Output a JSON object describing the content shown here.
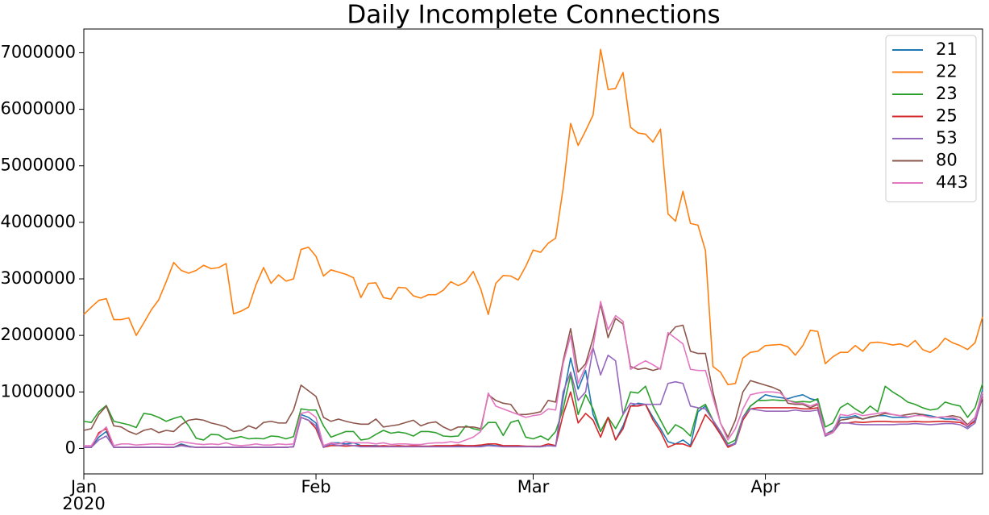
{
  "chart_data": {
    "type": "line",
    "title": "Daily Incomplete Connections",
    "categories": [
      "Jan",
      null,
      null,
      null,
      null,
      null,
      null,
      null,
      null,
      null,
      null,
      null,
      null,
      null,
      null,
      null,
      null,
      null,
      null,
      null,
      null,
      null,
      null,
      null,
      null,
      null,
      null,
      null,
      null,
      null,
      null,
      "Feb",
      null,
      null,
      null,
      null,
      null,
      null,
      null,
      null,
      null,
      null,
      null,
      null,
      null,
      null,
      null,
      null,
      null,
      null,
      null,
      null,
      null,
      null,
      null,
      null,
      null,
      null,
      null,
      null,
      "Mar",
      null,
      null,
      null,
      null,
      null,
      null,
      null,
      null,
      null,
      null,
      null,
      null,
      null,
      null,
      null,
      null,
      null,
      null,
      null,
      null,
      null,
      null,
      null,
      null,
      null,
      null,
      null,
      null,
      null,
      null,
      "Apr",
      null,
      null,
      null,
      null,
      null,
      null,
      null,
      null,
      null,
      null,
      null,
      null,
      null,
      null,
      null,
      null,
      null,
      null,
      null,
      null,
      null,
      null,
      null,
      null,
      null,
      null,
      null,
      null,
      null
    ],
    "x_year": "2020",
    "ylim": [
      -450000,
      7420000
    ],
    "yticks": [
      0,
      1000000,
      2000000,
      3000000,
      4000000,
      5000000,
      6000000,
      7000000
    ],
    "grid": false,
    "legend": "upper right",
    "series": [
      {
        "name": "21",
        "color": "#1f77b4",
        "values": [
          20000,
          20000,
          200000,
          300000,
          20000,
          20000,
          20000,
          20000,
          20000,
          20000,
          20000,
          20000,
          20000,
          80000,
          40000,
          20000,
          20000,
          20000,
          20000,
          20000,
          20000,
          20000,
          20000,
          20000,
          20000,
          20000,
          20000,
          20000,
          30000,
          600000,
          550000,
          450000,
          20000,
          100000,
          100000,
          80000,
          100000,
          50000,
          50000,
          50000,
          40000,
          40000,
          40000,
          40000,
          40000,
          40000,
          40000,
          40000,
          40000,
          40000,
          40000,
          40000,
          40000,
          40000,
          60000,
          50000,
          40000,
          40000,
          40000,
          40000,
          30000,
          30000,
          50000,
          40000,
          900000,
          1600000,
          1050000,
          1380000,
          600000,
          300000,
          550000,
          150000,
          400000,
          750000,
          800000,
          780000,
          550000,
          350000,
          120000,
          80000,
          150000,
          50000,
          650000,
          750000,
          500000,
          250000,
          30000,
          100000,
          550000,
          750000,
          850000,
          950000,
          920000,
          900000,
          880000,
          920000,
          950000,
          880000,
          850000,
          250000,
          320000,
          550000,
          550000,
          580000,
          520000,
          550000,
          580000,
          580000,
          550000,
          550000,
          550000,
          580000,
          600000,
          580000,
          550000,
          520000,
          520000,
          500000,
          380000,
          500000,
          1050000
        ]
      },
      {
        "name": "22",
        "color": "#ff7f0e",
        "values": [
          2370000,
          2500000,
          2620000,
          2650000,
          2280000,
          2280000,
          2310000,
          2000000,
          2220000,
          2450000,
          2630000,
          2950000,
          3290000,
          3150000,
          3100000,
          3150000,
          3240000,
          3180000,
          3200000,
          3270000,
          2380000,
          2430000,
          2500000,
          2900000,
          3200000,
          2920000,
          3070000,
          2960000,
          3000000,
          3520000,
          3560000,
          3400000,
          3050000,
          3160000,
          3120000,
          3080000,
          3020000,
          2670000,
          2920000,
          2930000,
          2670000,
          2640000,
          2850000,
          2840000,
          2700000,
          2660000,
          2720000,
          2720000,
          2800000,
          2950000,
          2880000,
          2950000,
          3130000,
          2820000,
          2370000,
          2920000,
          3060000,
          3050000,
          2980000,
          3220000,
          3510000,
          3470000,
          3630000,
          3720000,
          4600000,
          5750000,
          5360000,
          5620000,
          5900000,
          7060000,
          6350000,
          6370000,
          6650000,
          5680000,
          5580000,
          5560000,
          5420000,
          5650000,
          4150000,
          4020000,
          4550000,
          3980000,
          3950000,
          3500000,
          1450000,
          1350000,
          1130000,
          1150000,
          1600000,
          1700000,
          1720000,
          1820000,
          1830000,
          1840000,
          1800000,
          1650000,
          1820000,
          2090000,
          2070000,
          1500000,
          1620000,
          1700000,
          1700000,
          1820000,
          1720000,
          1870000,
          1880000,
          1860000,
          1830000,
          1850000,
          1800000,
          1910000,
          1750000,
          1700000,
          1790000,
          1950000,
          1870000,
          1820000,
          1750000,
          1870000,
          2330000
        ]
      },
      {
        "name": "23",
        "color": "#2ca02c",
        "values": [
          480000,
          460000,
          650000,
          760000,
          480000,
          450000,
          420000,
          370000,
          620000,
          600000,
          550000,
          480000,
          530000,
          570000,
          400000,
          180000,
          150000,
          250000,
          240000,
          160000,
          180000,
          210000,
          170000,
          180000,
          170000,
          220000,
          210000,
          170000,
          210000,
          700000,
          680000,
          680000,
          400000,
          200000,
          250000,
          300000,
          300000,
          150000,
          170000,
          250000,
          320000,
          270000,
          290000,
          270000,
          220000,
          300000,
          300000,
          280000,
          220000,
          210000,
          220000,
          400000,
          350000,
          320000,
          460000,
          460000,
          230000,
          460000,
          500000,
          200000,
          170000,
          220000,
          150000,
          300000,
          700000,
          1300000,
          600000,
          950000,
          700000,
          300000,
          550000,
          350000,
          600000,
          1000000,
          980000,
          1100000,
          750000,
          500000,
          250000,
          420000,
          350000,
          220000,
          700000,
          780000,
          500000,
          300000,
          80000,
          150000,
          550000,
          750000,
          850000,
          850000,
          860000,
          850000,
          850000,
          820000,
          830000,
          820000,
          880000,
          380000,
          450000,
          720000,
          800000,
          700000,
          620000,
          750000,
          650000,
          1100000,
          1000000,
          920000,
          820000,
          780000,
          720000,
          680000,
          700000,
          820000,
          780000,
          750000,
          550000,
          720000,
          1150000
        ]
      },
      {
        "name": "25",
        "color": "#d62728",
        "values": [
          20000,
          20000,
          280000,
          350000,
          20000,
          20000,
          20000,
          20000,
          20000,
          20000,
          20000,
          20000,
          20000,
          60000,
          30000,
          20000,
          20000,
          20000,
          20000,
          20000,
          20000,
          20000,
          20000,
          20000,
          20000,
          20000,
          20000,
          20000,
          30000,
          550000,
          500000,
          350000,
          20000,
          50000,
          50000,
          40000,
          50000,
          50000,
          50000,
          40000,
          50000,
          40000,
          50000,
          40000,
          50000,
          40000,
          40000,
          50000,
          50000,
          50000,
          60000,
          50000,
          50000,
          60000,
          80000,
          80000,
          50000,
          50000,
          50000,
          40000,
          40000,
          40000,
          80000,
          50000,
          600000,
          1000000,
          450000,
          620000,
          500000,
          200000,
          550000,
          150000,
          350000,
          750000,
          750000,
          780000,
          500000,
          300000,
          20000,
          80000,
          80000,
          30000,
          300000,
          600000,
          450000,
          250000,
          20000,
          80000,
          500000,
          700000,
          720000,
          720000,
          720000,
          720000,
          720000,
          720000,
          700000,
          700000,
          720000,
          220000,
          280000,
          450000,
          450000,
          470000,
          460000,
          470000,
          480000,
          480000,
          470000,
          470000,
          470000,
          480000,
          470000,
          470000,
          480000,
          480000,
          470000,
          460000,
          400000,
          480000,
          900000
        ]
      },
      {
        "name": "53",
        "color": "#9467bd",
        "values": [
          20000,
          20000,
          150000,
          220000,
          20000,
          20000,
          20000,
          20000,
          20000,
          20000,
          20000,
          20000,
          20000,
          50000,
          30000,
          20000,
          20000,
          20000,
          20000,
          20000,
          20000,
          20000,
          20000,
          20000,
          20000,
          20000,
          20000,
          20000,
          30000,
          550000,
          500000,
          400000,
          20000,
          80000,
          50000,
          70000,
          50000,
          30000,
          30000,
          30000,
          30000,
          30000,
          30000,
          30000,
          30000,
          30000,
          30000,
          30000,
          30000,
          30000,
          30000,
          30000,
          30000,
          30000,
          50000,
          40000,
          30000,
          30000,
          30000,
          30000,
          30000,
          30000,
          50000,
          40000,
          1000000,
          1350000,
          850000,
          1000000,
          1780000,
          1300000,
          1650000,
          1550000,
          600000,
          800000,
          780000,
          780000,
          780000,
          780000,
          1150000,
          1180000,
          1150000,
          750000,
          720000,
          700000,
          500000,
          300000,
          50000,
          80000,
          550000,
          700000,
          680000,
          660000,
          660000,
          660000,
          660000,
          680000,
          660000,
          660000,
          680000,
          220000,
          280000,
          450000,
          450000,
          430000,
          420000,
          420000,
          420000,
          420000,
          420000,
          430000,
          430000,
          440000,
          430000,
          420000,
          430000,
          440000,
          440000,
          420000,
          350000,
          450000,
          950000
        ]
      },
      {
        "name": "80",
        "color": "#8c564b",
        "values": [
          320000,
          350000,
          600000,
          750000,
          400000,
          380000,
          300000,
          250000,
          320000,
          350000,
          280000,
          320000,
          300000,
          420000,
          500000,
          520000,
          500000,
          450000,
          420000,
          380000,
          300000,
          320000,
          400000,
          350000,
          460000,
          480000,
          450000,
          450000,
          680000,
          1120000,
          1020000,
          920000,
          550000,
          480000,
          520000,
          480000,
          450000,
          430000,
          430000,
          520000,
          380000,
          400000,
          420000,
          460000,
          500000,
          400000,
          450000,
          470000,
          380000,
          320000,
          380000,
          380000,
          380000,
          350000,
          950000,
          850000,
          800000,
          780000,
          600000,
          600000,
          620000,
          650000,
          850000,
          820000,
          1550000,
          2120000,
          1350000,
          1500000,
          1950000,
          2550000,
          1960000,
          2300000,
          2200000,
          1450000,
          1400000,
          1420000,
          1380000,
          1420000,
          2000000,
          2150000,
          2180000,
          1720000,
          1680000,
          1680000,
          1000000,
          450000,
          200000,
          500000,
          1000000,
          1200000,
          1160000,
          1120000,
          1080000,
          1020000,
          800000,
          780000,
          780000,
          720000,
          780000,
          250000,
          300000,
          500000,
          520000,
          550000,
          520000,
          560000,
          580000,
          620000,
          600000,
          580000,
          600000,
          620000,
          600000,
          550000,
          550000,
          560000,
          580000,
          550000,
          420000,
          550000,
          1000000
        ]
      },
      {
        "name": "443",
        "color": "#e377c2",
        "values": [
          50000,
          50000,
          250000,
          380000,
          50000,
          80000,
          80000,
          60000,
          70000,
          80000,
          80000,
          70000,
          70000,
          120000,
          100000,
          80000,
          70000,
          80000,
          70000,
          100000,
          60000,
          50000,
          60000,
          80000,
          60000,
          60000,
          80000,
          70000,
          80000,
          620000,
          650000,
          550000,
          50000,
          100000,
          80000,
          120000,
          100000,
          100000,
          100000,
          80000,
          100000,
          70000,
          80000,
          80000,
          70000,
          70000,
          90000,
          100000,
          100000,
          120000,
          100000,
          150000,
          200000,
          300000,
          980000,
          750000,
          700000,
          650000,
          600000,
          550000,
          580000,
          600000,
          700000,
          680000,
          1500000,
          2000000,
          1150000,
          1450000,
          1800000,
          2600000,
          2100000,
          2350000,
          2250000,
          1400000,
          1480000,
          1550000,
          1480000,
          1400000,
          2050000,
          1950000,
          1850000,
          1400000,
          1380000,
          1380000,
          900000,
          450000,
          150000,
          350000,
          700000,
          950000,
          980000,
          1000000,
          1000000,
          980000,
          850000,
          800000,
          800000,
          750000,
          800000,
          250000,
          280000,
          600000,
          580000,
          620000,
          580000,
          600000,
          620000,
          640000,
          600000,
          580000,
          560000,
          580000,
          580000,
          550000,
          550000,
          560000,
          550000,
          500000,
          400000,
          550000,
          1000000
        ]
      }
    ]
  }
}
